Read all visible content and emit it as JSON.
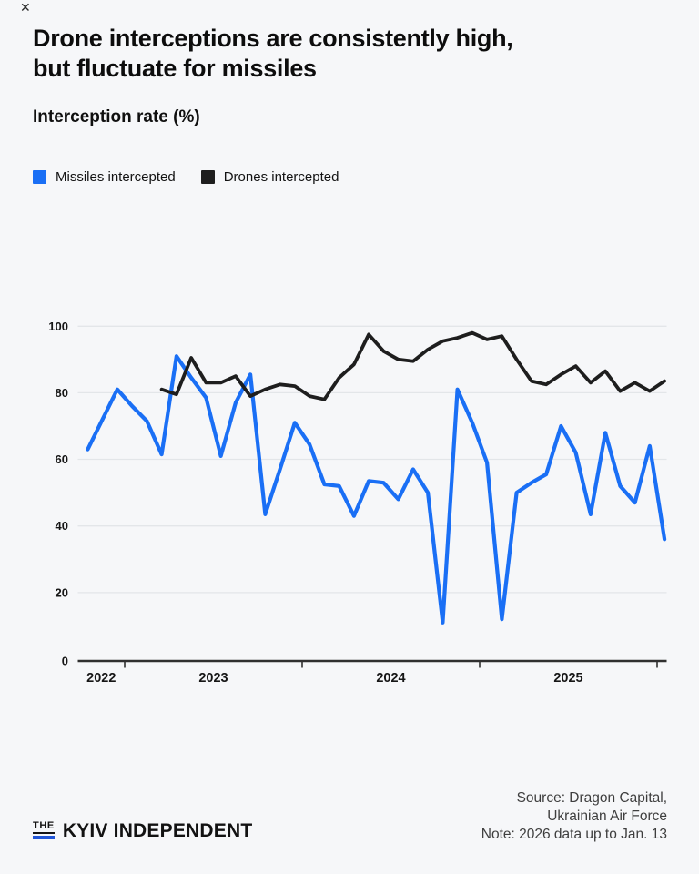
{
  "icons": {
    "close_glyph": "✕"
  },
  "header": {
    "title": "Drone interceptions are consistently high,\nbut fluctuate for missiles",
    "subtitle": "Interception rate (%)"
  },
  "legend": {
    "missiles_label": "Missiles intercepted",
    "drones_label": "Drones intercepted"
  },
  "colors": {
    "missiles": "#1a6ff5",
    "drones": "#1e1e1e",
    "background": "#f6f7f9",
    "grid": "#e3e6e9",
    "axis": "#303030",
    "logo_blue": "#2156d8"
  },
  "chart_data": {
    "type": "line",
    "title": "Drone interceptions are consistently high, but fluctuate for missiles",
    "ylabel": "Interception rate (%)",
    "ylim": [
      0,
      100
    ],
    "y_ticks": [
      0,
      20,
      40,
      60,
      80,
      100
    ],
    "x_year_labels": [
      "2022",
      "2023",
      "2024",
      "2025"
    ],
    "grid": true,
    "legend_position": "top-left",
    "categories": [
      "Oct 2022",
      "Nov 2022",
      "Dec 2022",
      "Jan 2023",
      "Feb 2023",
      "Mar 2023",
      "Apr 2023",
      "May 2023",
      "Jun 2023",
      "Jul 2023",
      "Aug 2023",
      "Sep 2023",
      "Oct 2023",
      "Nov 2023",
      "Dec 2023",
      "Jan 2024",
      "Feb 2024",
      "Mar 2024",
      "Apr 2024",
      "May 2024",
      "Jun 2024",
      "Jul 2024",
      "Aug 2024",
      "Sep 2024",
      "Oct 2024",
      "Nov 2024",
      "Dec 2024",
      "Jan 2025",
      "Feb 2025",
      "Mar 2025",
      "Apr 2025",
      "May 2025",
      "Jun 2025",
      "Jul 2025",
      "Aug 2025",
      "Sep 2025",
      "Oct 2025",
      "Nov 2025",
      "Dec 2025",
      "Jan 2026"
    ],
    "series": [
      {
        "name": "Missiles intercepted",
        "values": [
          63,
          72,
          81,
          76,
          71.5,
          61.5,
          91,
          84.5,
          78.5,
          61,
          77,
          85.5,
          43.5,
          57,
          71,
          64.5,
          52.5,
          52,
          43,
          53.5,
          53,
          48,
          57,
          50,
          11,
          81,
          71,
          59,
          12,
          50,
          53,
          55.5,
          70,
          62,
          43.5,
          68,
          52,
          47,
          64,
          36
        ]
      },
      {
        "name": "Drones intercepted",
        "values": [
          null,
          null,
          null,
          null,
          null,
          81,
          79.5,
          90.5,
          83,
          83,
          85,
          79,
          81,
          82.5,
          82,
          79,
          78,
          84.5,
          88.5,
          97.5,
          92.5,
          90,
          89.5,
          93,
          95.5,
          96.5,
          98,
          96,
          97,
          90,
          83.5,
          82.5,
          85.5,
          88,
          83,
          86.5,
          80.5,
          83,
          80.5,
          83.5
        ]
      }
    ]
  },
  "footer": {
    "source": "Source: Dragon Capital,\nUkrainian Air Force\nNote: 2026 data up to Jan. 13",
    "logo_the": "THE",
    "logo_name": "KYIV INDEPENDENT"
  }
}
